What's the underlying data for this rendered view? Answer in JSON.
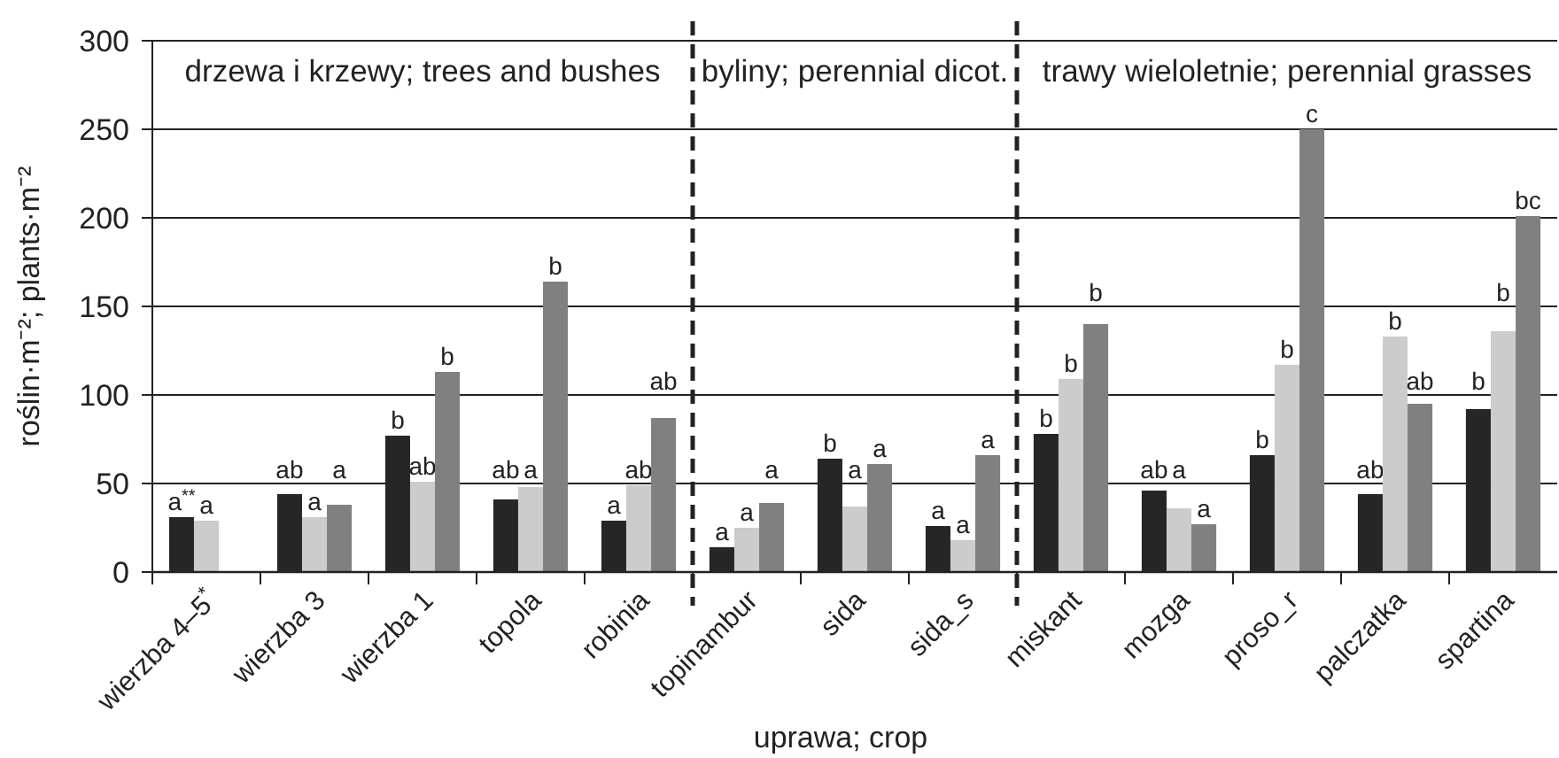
{
  "chart_data": {
    "type": "bar",
    "xlabel": "uprawa; crop",
    "ylabel": "roślin·m⁻²; plants·m⁻²",
    "categories": [
      "wierzba 4–5$^{*}$",
      "wierzba 3",
      "wierzba 1",
      "topola",
      "robinia",
      "topinambur",
      "sida",
      "sida_s",
      "miskant",
      "mozga",
      "proso_r",
      "palczatka",
      "spartina"
    ],
    "series": [
      {
        "color": "#262626",
        "values": [
          31,
          44,
          77,
          41,
          29,
          14,
          64,
          26,
          78,
          46,
          66,
          44,
          92
        ],
        "value_labels": [
          "a$^{**}$",
          "ab",
          "b",
          "ab",
          "a",
          "a",
          "b",
          "a",
          "b",
          "ab",
          "b",
          "ab",
          "b"
        ]
      },
      {
        "color": "#cccccc",
        "values": [
          29,
          31,
          51,
          48,
          49,
          25,
          37,
          18,
          109,
          36,
          117,
          133,
          136
        ],
        "value_labels": [
          "a",
          "a",
          "ab",
          "a",
          "ab",
          "a",
          "a",
          "a",
          "b",
          "a",
          "b",
          "b",
          "b"
        ]
      },
      {
        "color": "#808080",
        "values": [
          null,
          38,
          113,
          164,
          87,
          39,
          61,
          66,
          140,
          27,
          250,
          95,
          201
        ],
        "value_labels": [
          null,
          "a",
          "b",
          "b",
          "ab",
          "a",
          "a",
          "a",
          "b",
          "a",
          "c",
          "ab",
          "bc"
        ]
      }
    ],
    "ylim": [
      0,
      300
    ],
    "yticks": [
      0,
      50,
      100,
      150,
      200,
      250,
      300
    ],
    "grid": "y",
    "annotations": [
      "drzewa i krzewy; trees and bushes",
      "byliny; perennial dicot.",
      "trawy wieloletnie; perennial grasses"
    ]
  }
}
